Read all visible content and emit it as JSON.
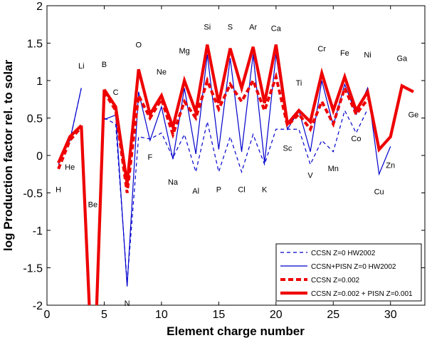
{
  "chart_data": {
    "type": "line",
    "title": "",
    "xlabel": "Element charge number",
    "ylabel": "log Production factor rel. to solar",
    "xlim": [
      0,
      33
    ],
    "ylim": [
      -2,
      2
    ],
    "xticks": [
      0,
      5,
      10,
      15,
      20,
      25,
      30
    ],
    "yticks": [
      -2,
      -1.5,
      -1,
      -0.5,
      0,
      0.5,
      1,
      1.5,
      2
    ],
    "tick_labels_y": [
      "-2",
      "-1.5",
      "-1",
      "-0.5",
      "0",
      "0.5",
      "1",
      "1.5",
      "2"
    ],
    "tick_labels_x": [
      "0",
      "5",
      "10",
      "15",
      "20",
      "25",
      "30"
    ],
    "legend_position": "bottom-right",
    "series": [
      {
        "name": "CCSN Z=0 HW2002",
        "color": "#0000cc",
        "style": "dashed-thin",
        "segments": [
          {
            "x": [
              1,
              2,
              3
            ],
            "y": [
              -0.12,
              0.2,
              0.9
            ]
          },
          {
            "x": [
              5,
              6,
              7,
              8,
              9,
              10,
              11,
              12,
              13,
              14,
              15,
              16,
              17,
              18,
              19,
              20,
              21,
              22,
              23,
              24,
              25,
              26,
              27,
              28
            ],
            "y": [
              0.5,
              0.42,
              -1.7,
              0.25,
              0.22,
              0.3,
              -0.03,
              0.28,
              -0.22,
              0.45,
              -0.22,
              0.25,
              -0.22,
              0.28,
              -0.12,
              0.35,
              0.35,
              0.35,
              -0.12,
              0.2,
              0.05,
              0.6,
              0.3,
              0.62
            ]
          }
        ]
      },
      {
        "name": "CCSN+PISN Z=0 HW2002",
        "color": "#0000cc",
        "style": "solid-thin",
        "segments": [
          {
            "x": [
              1,
              2,
              3
            ],
            "y": [
              -0.1,
              0.2,
              0.9
            ]
          },
          {
            "x": [
              5,
              6,
              7,
              8,
              9,
              10,
              11,
              12,
              13,
              14,
              15,
              16,
              17,
              18,
              19,
              20,
              21,
              22,
              23,
              24,
              25,
              26,
              27,
              28,
              29,
              30
            ],
            "y": [
              0.48,
              0.54,
              -1.75,
              0.85,
              0.2,
              0.65,
              -0.05,
              0.9,
              0.02,
              1.35,
              0.08,
              1.3,
              0.05,
              1.35,
              -0.1,
              1.35,
              0.35,
              0.6,
              0.05,
              1.0,
              0.4,
              0.95,
              0.55,
              0.9,
              -0.25,
              0.12
            ]
          }
        ]
      },
      {
        "name": "CCSN Z=0.002",
        "color": "#ee0000",
        "style": "dashed-thick",
        "segments": [
          {
            "x": [
              1,
              2,
              3
            ],
            "y": [
              -0.18,
              0.2,
              0.38
            ]
          },
          {
            "x": [
              5,
              6,
              7,
              8,
              9,
              10,
              11,
              12,
              13,
              14,
              15,
              16,
              17,
              18,
              19,
              20,
              21,
              22,
              23,
              24,
              25,
              26,
              27,
              28
            ],
            "y": [
              0.85,
              0.6,
              -0.5,
              0.8,
              0.5,
              0.75,
              0.28,
              0.72,
              0.5,
              1.0,
              0.62,
              0.95,
              0.72,
              1.0,
              0.6,
              1.05,
              0.4,
              0.55,
              0.35,
              0.72,
              0.42,
              0.9,
              0.55,
              0.75
            ]
          }
        ]
      },
      {
        "name": "CCSN Z=0.002 + PISN Z=0.001",
        "color": "#ee0000",
        "style": "solid-thick",
        "segments": [
          {
            "x": [
              1,
              2,
              3
            ],
            "y": [
              -0.1,
              0.25,
              0.4
            ]
          },
          {
            "x": [
              5,
              6,
              7,
              8,
              9,
              10,
              11,
              12,
              13,
              14,
              15,
              16,
              17,
              18,
              19,
              20,
              21,
              22,
              23,
              24,
              25,
              26,
              27,
              28,
              29,
              30,
              31,
              32
            ],
            "y": [
              0.88,
              0.65,
              -0.38,
              1.15,
              0.55,
              0.8,
              0.38,
              1.0,
              0.58,
              1.48,
              0.7,
              1.43,
              0.9,
              1.45,
              0.7,
              1.48,
              0.42,
              0.6,
              0.45,
              1.1,
              0.6,
              1.05,
              0.6,
              0.85,
              0.08,
              0.25,
              0.93,
              0.85
            ]
          }
        ]
      }
    ],
    "off_scale_drops": [
      {
        "from_x": 3,
        "from_y": 0.4,
        "toward_x": 3.75
      },
      {
        "from_x": 5,
        "from_y": 0.88,
        "toward_x": 4.3
      }
    ],
    "element_labels": [
      {
        "text": "H",
        "x": 1,
        "y": -0.45
      },
      {
        "text": "He",
        "x": 2,
        "y": -0.15
      },
      {
        "text": "Li",
        "x": 3,
        "y": 1.2
      },
      {
        "text": "Be",
        "x": 4,
        "y": -0.65
      },
      {
        "text": "B",
        "x": 5,
        "y": 1.22
      },
      {
        "text": "C",
        "x": 6,
        "y": 0.85
      },
      {
        "text": "N",
        "x": 7,
        "y": -1.97
      },
      {
        "text": "O",
        "x": 8,
        "y": 1.48
      },
      {
        "text": "F",
        "x": 9,
        "y": -0.02
      },
      {
        "text": "Ne",
        "x": 10,
        "y": 1.12
      },
      {
        "text": "Na",
        "x": 11,
        "y": -0.35
      },
      {
        "text": "Mg",
        "x": 12,
        "y": 1.4
      },
      {
        "text": "Al",
        "x": 13,
        "y": -0.47
      },
      {
        "text": "Si",
        "x": 14,
        "y": 1.72
      },
      {
        "text": "P",
        "x": 15,
        "y": -0.45
      },
      {
        "text": "S",
        "x": 16,
        "y": 1.72
      },
      {
        "text": "Cl",
        "x": 17,
        "y": -0.45
      },
      {
        "text": "Ar",
        "x": 18,
        "y": 1.72
      },
      {
        "text": "K",
        "x": 19,
        "y": -0.45
      },
      {
        "text": "Ca",
        "x": 20,
        "y": 1.7
      },
      {
        "text": "Sc",
        "x": 21,
        "y": 0.1
      },
      {
        "text": "Ti",
        "x": 22,
        "y": 0.97
      },
      {
        "text": "V",
        "x": 23,
        "y": -0.26
      },
      {
        "text": "Cr",
        "x": 24,
        "y": 1.43
      },
      {
        "text": "Mn",
        "x": 25,
        "y": -0.17
      },
      {
        "text": "Fe",
        "x": 26,
        "y": 1.37
      },
      {
        "text": "Co",
        "x": 27,
        "y": 0.23
      },
      {
        "text": "Ni",
        "x": 28,
        "y": 1.35
      },
      {
        "text": "Cu",
        "x": 29,
        "y": -0.48
      },
      {
        "text": "Zn",
        "x": 30,
        "y": -0.13
      },
      {
        "text": "Ga",
        "x": 31,
        "y": 1.3
      },
      {
        "text": "Ge",
        "x": 32,
        "y": 0.55
      }
    ]
  }
}
